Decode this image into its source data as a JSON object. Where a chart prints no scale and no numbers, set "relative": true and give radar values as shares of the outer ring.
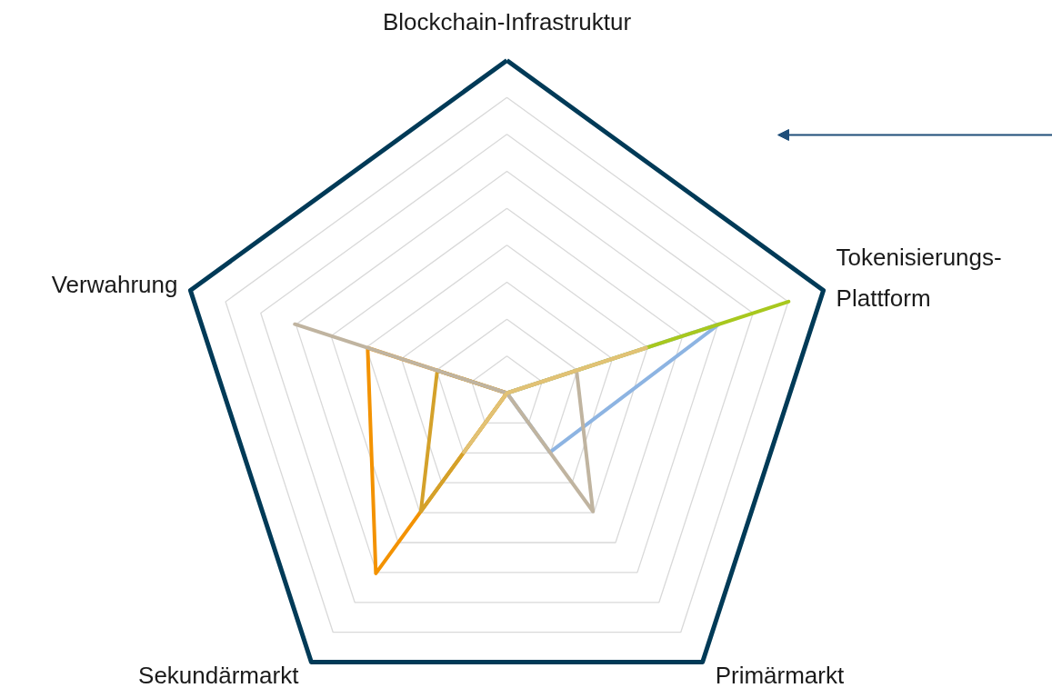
{
  "chart_data": {
    "type": "radar",
    "relative": true,
    "grid": true,
    "categories": [
      "Blockchain-Infrastruktur",
      "Tokenisierungs-\nPlattform",
      "Primärmarkt",
      "Sekundärmarkt",
      "Verwahrung"
    ],
    "series": [
      {
        "color": "#8db4e2",
        "values": [
          0,
          0.67,
          0.22,
          0,
          0
        ]
      },
      {
        "color": "#a8c81e",
        "values": [
          0,
          0.89,
          0,
          0,
          0
        ]
      },
      {
        "color": "#f39200",
        "values": [
          0,
          0,
          0,
          0.67,
          0.44
        ]
      },
      {
        "color": "#d4a12a",
        "values": [
          0,
          0,
          0,
          0.44,
          0.22
        ]
      },
      {
        "color": "#c0b4a0",
        "values": [
          0,
          0.22,
          0.44,
          0,
          0.67
        ]
      },
      {
        "color": "#e2c275",
        "values": [
          0,
          0.44,
          0,
          0.22,
          0
        ]
      }
    ]
  }
}
